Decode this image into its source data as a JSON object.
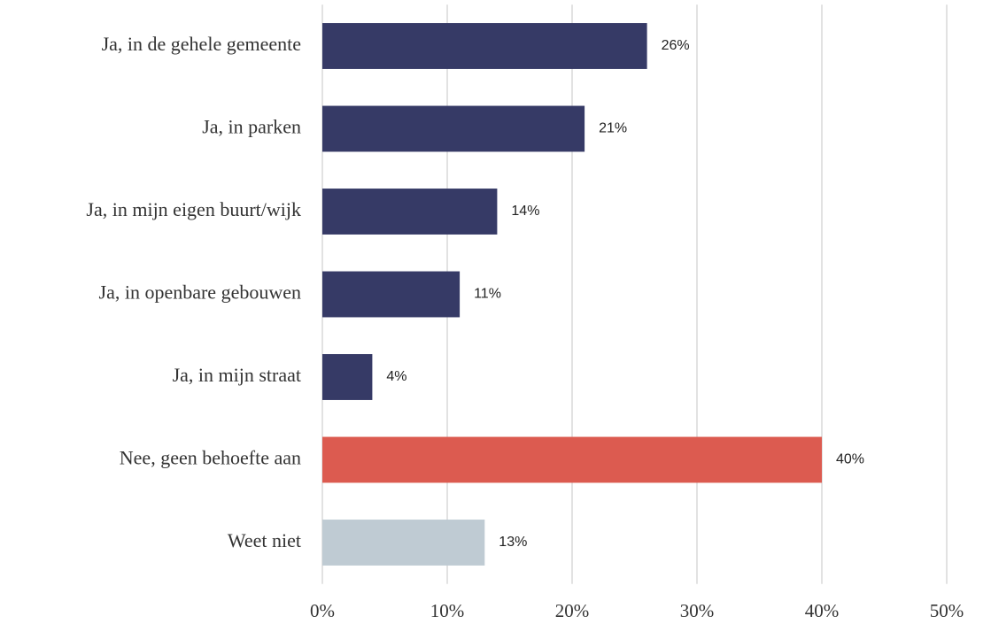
{
  "chart_data": {
    "type": "hbar",
    "categories": [
      "Ja, in de gehele gemeente",
      "Ja, in parken",
      "Ja, in mijn eigen buurt/wijk",
      "Ja, in openbare gebouwen",
      "Ja, in mijn straat",
      "Nee, geen behoefte aan",
      "Weet niet"
    ],
    "values": [
      26,
      21,
      14,
      11,
      4,
      40,
      13
    ],
    "value_labels": [
      "26%",
      "21%",
      "14%",
      "11%",
      "4%",
      "40%",
      "13%"
    ],
    "colors": [
      "#363a66",
      "#363a66",
      "#363a66",
      "#363a66",
      "#363a66",
      "#dc5b50",
      "#bfcbd3"
    ],
    "xlim": [
      0,
      50
    ],
    "xticks": [
      {
        "value": 0,
        "label": "0%"
      },
      {
        "value": 10,
        "label": "10%"
      },
      {
        "value": 20,
        "label": "20%"
      },
      {
        "value": 30,
        "label": "30%"
      },
      {
        "value": 40,
        "label": "40%"
      },
      {
        "value": 50,
        "label": "50%"
      }
    ],
    "grid": true
  }
}
